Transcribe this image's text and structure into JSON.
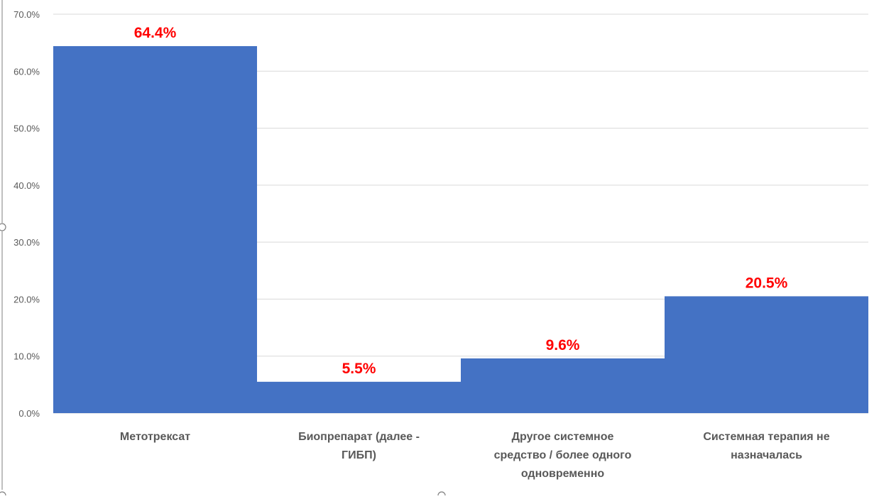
{
  "chart_data": {
    "type": "bar",
    "title": "",
    "xlabel": "",
    "ylabel": "",
    "categories": [
      [
        "Метотрексат"
      ],
      [
        "Биопрепарат (далее -",
        "ГИБП)"
      ],
      [
        "Другое системное",
        "средство / более одного",
        "одновременно"
      ],
      [
        "Системная терапия не",
        "назначалась"
      ]
    ],
    "values": [
      64.4,
      5.5,
      9.6,
      20.5
    ],
    "data_labels": [
      "64.4%",
      "5.5%",
      "9.6%",
      "20.5%"
    ],
    "y_ticks": [
      "0.0%",
      "10.0%",
      "20.0%",
      "30.0%",
      "40.0%",
      "50.0%",
      "60.0%",
      "70.0%"
    ],
    "ylim": [
      0,
      70
    ],
    "grid": true,
    "bar_color": "#4472C4",
    "label_color": "#FF0000",
    "grid_color": "#D9D9D9",
    "tick_color": "#595959"
  }
}
